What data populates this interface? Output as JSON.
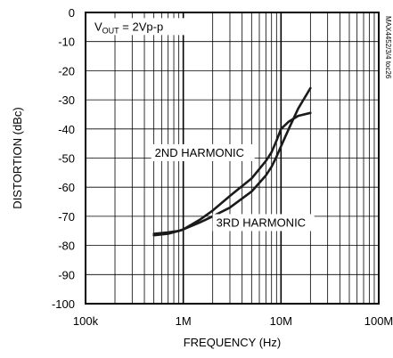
{
  "chart_data": {
    "type": "line",
    "title": "",
    "xlabel": "FREQUENCY (Hz)",
    "ylabel": "DISTORTION (dBc)",
    "x_scale": "log",
    "xlim": [
      100000,
      100000000
    ],
    "ylim": [
      -100,
      0
    ],
    "grid": true,
    "x_ticks": [
      {
        "value": 100000,
        "label": "100k"
      },
      {
        "value": 1000000,
        "label": "1M"
      },
      {
        "value": 10000000,
        "label": "10M"
      },
      {
        "value": 100000000,
        "label": "100M"
      }
    ],
    "y_ticks": [
      {
        "value": 0,
        "label": "0"
      },
      {
        "value": -10,
        "label": "-10"
      },
      {
        "value": -20,
        "label": "-20"
      },
      {
        "value": -30,
        "label": "-30"
      },
      {
        "value": -40,
        "label": "-40"
      },
      {
        "value": -50,
        "label": "-50"
      },
      {
        "value": -60,
        "label": "-60"
      },
      {
        "value": -70,
        "label": "-70"
      },
      {
        "value": -80,
        "label": "-80"
      },
      {
        "value": -90,
        "label": "-90"
      },
      {
        "value": -100,
        "label": "-100"
      }
    ],
    "series": [
      {
        "name": "2ND HARMONIC",
        "x": [
          500000,
          700000,
          900000,
          1000000,
          1500000,
          2000000,
          3000000,
          5000000,
          7000000,
          8000000,
          9000000,
          10000000,
          12000000,
          15000000,
          20000000
        ],
        "y": [
          -76.5,
          -76,
          -75,
          -74.5,
          -71,
          -68,
          -63,
          -57,
          -51,
          -48,
          -44,
          -40,
          -37.5,
          -35.5,
          -34.5
        ]
      },
      {
        "name": "3RD HARMONIC",
        "x": [
          500000,
          700000,
          900000,
          1000000,
          1500000,
          2000000,
          3000000,
          5000000,
          7000000,
          8000000,
          9000000,
          10000000,
          12000000,
          15000000,
          20000000
        ],
        "y": [
          -76,
          -75.5,
          -75,
          -74.5,
          -72,
          -70,
          -67,
          -61.5,
          -56,
          -53,
          -49.5,
          -46,
          -40,
          -33,
          -26
        ]
      }
    ],
    "annotations": {
      "condition_prefix": "V",
      "condition_subscript": "OUT",
      "condition_suffix": " = 2Vp-p",
      "label_2nd": "2ND HARMONIC",
      "label_3rd": "3RD HARMONIC",
      "side_code": "MAX4452/3/4 toc26"
    }
  }
}
